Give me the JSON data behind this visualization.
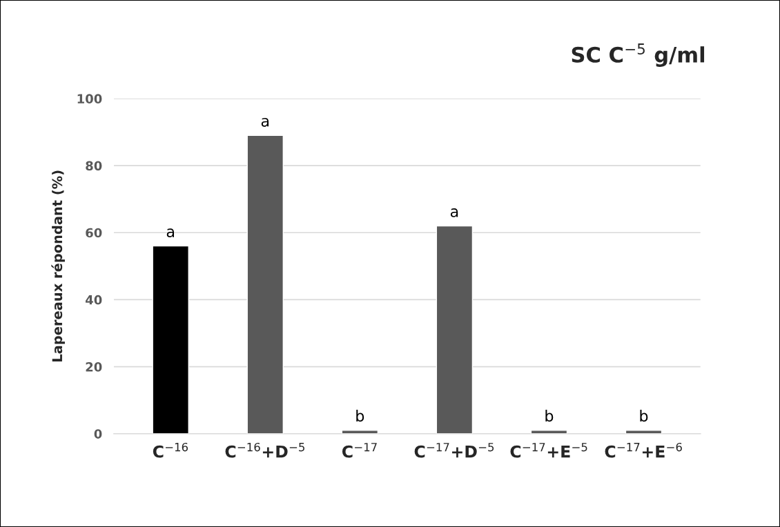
{
  "chart_data": {
    "type": "bar",
    "title": "SC C$^{−5}$ g/ml",
    "ylabel": "Lapereaux répondant (%)",
    "categories": [
      "C$^{−16}$",
      "C$^{−16}$+D$^{−5}$",
      "C$^{−17}$",
      "C$^{−17}$+D$^{−5}$",
      "C$^{−17}$+E$^{−5}$",
      "C$^{−17}$+E$^{−6}$"
    ],
    "values": [
      56,
      89,
      1,
      62,
      1,
      1
    ],
    "colors": [
      "#000000",
      "#595959",
      "#595959",
      "#595959",
      "#595959",
      "#595959"
    ],
    "value_labels": [
      "a",
      "a",
      "b",
      "a",
      "b",
      "b"
    ],
    "ylim": [
      0,
      100
    ],
    "yticks": [
      0,
      20,
      40,
      60,
      80,
      100
    ],
    "grid": "y"
  }
}
